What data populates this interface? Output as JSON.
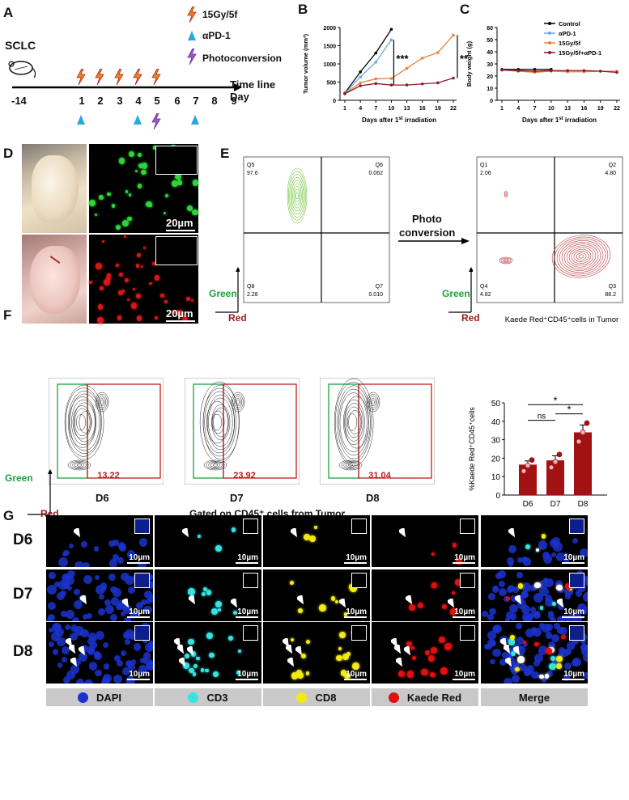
{
  "panels": {
    "A": "A",
    "B": "B",
    "C": "C",
    "D": "D",
    "E": "E",
    "F": "F",
    "G": "G"
  },
  "panelA": {
    "model": "SCLC",
    "legend_irradiation": "15Gy/5f",
    "legend_apd1": "αPD-1",
    "legend_photo": "Photoconversion",
    "timeline_label_1": "Time line",
    "timeline_label_2": "Day",
    "days": [
      "-14",
      "1",
      "2",
      "3",
      "4",
      "5",
      "6",
      "7",
      "8",
      "9"
    ]
  },
  "chart_data": [
    {
      "type": "line",
      "panel": "B",
      "ylabel": "Tumor volume (mm³)",
      "xlabel": "Days after 1st irradiation",
      "x": [
        1,
        4,
        7,
        10,
        13,
        16,
        19,
        22
      ],
      "yticks": [
        "0",
        "500",
        "1000",
        "1500",
        "2000"
      ],
      "ylim": [
        0,
        2000
      ],
      "series": [
        {
          "name": "Control",
          "color": "#000000",
          "values": [
            200,
            780,
            1300,
            1950,
            null,
            null,
            null,
            null
          ]
        },
        {
          "name": "αPD-1",
          "color": "#6aa8e0",
          "values": [
            190,
            640,
            1050,
            1660,
            null,
            null,
            null,
            null
          ]
        },
        {
          "name": "15Gy/5f",
          "color": "#e8823a",
          "values": [
            185,
            480,
            590,
            600,
            880,
            1160,
            1310,
            1790
          ]
        },
        {
          "name": "15Gy/5f+αPD-1",
          "color": "#8b1a2b",
          "values": [
            180,
            400,
            460,
            420,
            420,
            450,
            480,
            610
          ]
        }
      ],
      "annotations": [
        "***",
        "***"
      ]
    },
    {
      "type": "line",
      "panel": "C",
      "ylabel": "Body weight (g)",
      "xlabel": "Days after 1st irradiation",
      "x": [
        1,
        4,
        7,
        10,
        13,
        16,
        19,
        22
      ],
      "yticks": [
        "0",
        "10",
        "20",
        "30",
        "40",
        "50",
        "60"
      ],
      "ylim": [
        0,
        60
      ],
      "series": [
        {
          "name": "Control",
          "color": "#000000",
          "values": [
            25.5,
            25.5,
            25.5,
            25.5,
            null,
            null,
            null,
            null
          ]
        },
        {
          "name": "αPD-1",
          "color": "#6aa8e0",
          "values": [
            25,
            24,
            23.5,
            24,
            null,
            null,
            null,
            null
          ]
        },
        {
          "name": "15Gy/5f",
          "color": "#e8823a",
          "values": [
            25,
            24,
            23,
            24,
            23.5,
            23.5,
            24,
            24
          ]
        },
        {
          "name": "15Gy/5f+αPD-1",
          "color": "#8b1a2b",
          "values": [
            25,
            24.5,
            24,
            24.5,
            24.5,
            24.5,
            24,
            23
          ]
        }
      ]
    },
    {
      "type": "bar",
      "panel": "F",
      "title": "Kaede Red⁺CD45⁺cells in Tumor",
      "ylabel": "%Kaede Red⁺CD45⁺cells",
      "categories": [
        "D6",
        "D7",
        "D8"
      ],
      "values": [
        16.5,
        18.8,
        34
      ],
      "points": [
        [
          13,
          16,
          19
        ],
        [
          15,
          18,
          22
        ],
        [
          29,
          34,
          39
        ]
      ],
      "yticks": [
        "0",
        "10",
        "20",
        "30",
        "40",
        "50"
      ],
      "ylim": [
        0,
        50
      ],
      "significance": [
        "*",
        "ns",
        "*"
      ]
    }
  ],
  "panelD": {
    "scale_top": "20µm",
    "scale_bottom": "20µm"
  },
  "panelE": {
    "left": {
      "q5": "Q5",
      "q5v": "97.6",
      "q6": "Q6",
      "q6v": "0.062",
      "q8": "Q8",
      "q8v": "2.28",
      "q7": "Q7",
      "q7v": "0.010"
    },
    "right": {
      "q1": "Q1",
      "q1v": "2.06",
      "q2": "Q2",
      "q2v": "4.80",
      "q4": "Q4",
      "q4v": "4.82",
      "q3": "Q3",
      "q3v": "88.2"
    },
    "arrow_label_1": "Photo",
    "arrow_label_2": "conversion",
    "green": "Green",
    "red": "Red"
  },
  "panelF": {
    "values": [
      "13.22",
      "23.92",
      "31.04"
    ],
    "days": [
      "D6",
      "D7",
      "D8"
    ],
    "gated": "Gated on CD45⁺ cells from Tumor",
    "green": "Green",
    "red": "Red"
  },
  "panelG": {
    "rows": [
      "D6",
      "D7",
      "D8"
    ],
    "scale": "10µm",
    "legend": [
      "DAPI",
      "CD3",
      "CD8",
      "Kaede Red",
      "Merge"
    ],
    "colors": {
      "dapi": "#1a33cc",
      "cd3": "#35e3e3",
      "cd8": "#f3ea10",
      "red": "#e01010"
    }
  }
}
